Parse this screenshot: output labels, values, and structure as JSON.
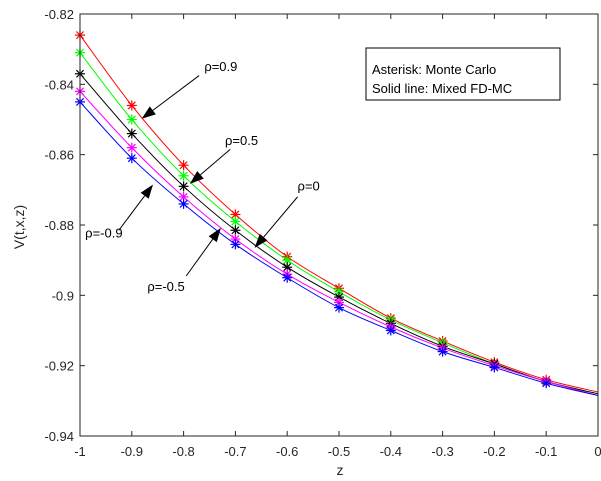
{
  "chart_data": {
    "type": "line",
    "title": "",
    "xlabel": "z",
    "ylabel": "V(t,x,z)",
    "xlim": [
      -1,
      0
    ],
    "ylim": [
      -0.94,
      -0.82
    ],
    "x_ticks": [
      -1,
      -0.9,
      -0.8,
      -0.7,
      -0.6,
      -0.5,
      -0.4,
      -0.3,
      -0.2,
      -0.1,
      0
    ],
    "y_ticks": [
      -0.94,
      -0.92,
      -0.9,
      -0.88,
      -0.86,
      -0.84,
      -0.82
    ],
    "x_tick_labels": [
      "-1",
      "-0.9",
      "-0.8",
      "-0.7",
      "-0.6",
      "-0.5",
      "-0.4",
      "-0.3",
      "-0.2",
      "-0.1",
      "0"
    ],
    "y_tick_labels": [
      "-0.94",
      "-0.92",
      "-0.9",
      "-0.88",
      "-0.86",
      "-0.84",
      "-0.82"
    ],
    "grid": false,
    "legend_text": [
      "Asterisk: Monte Carlo",
      "Solid line: Mixed FD-MC"
    ],
    "legend_position": "top-right",
    "x": [
      -1,
      -0.9,
      -0.8,
      -0.7,
      -0.6,
      -0.5,
      -0.4,
      -0.3,
      -0.2,
      -0.1,
      0
    ],
    "series": [
      {
        "color": "#ff0000",
        "values": [
          -0.826,
          -0.846,
          -0.863,
          -0.877,
          -0.889,
          -0.898,
          -0.9065,
          -0.913,
          -0.919,
          -0.924,
          -0.9275
        ]
      },
      {
        "color": "#00ff00",
        "values": [
          -0.831,
          -0.85,
          -0.866,
          -0.879,
          -0.89,
          -0.899,
          -0.907,
          -0.9135,
          -0.9195,
          -0.9245,
          -0.928
        ]
      },
      {
        "color": "#000000",
        "values": [
          -0.837,
          -0.854,
          -0.869,
          -0.8815,
          -0.892,
          -0.9005,
          -0.908,
          -0.9145,
          -0.9195,
          -0.9245,
          -0.928
        ]
      },
      {
        "color": "#ff00ff",
        "values": [
          -0.842,
          -0.858,
          -0.872,
          -0.884,
          -0.894,
          -0.902,
          -0.909,
          -0.915,
          -0.92,
          -0.9245,
          -0.9285
        ]
      },
      {
        "color": "#0000ff",
        "values": [
          -0.845,
          -0.861,
          -0.874,
          -0.8855,
          -0.895,
          -0.9035,
          -0.91,
          -0.916,
          -0.9205,
          -0.925,
          -0.9285
        ]
      }
    ],
    "annotations": [
      {
        "label": "ρ=0.9",
        "text_at": [
          -0.76,
          -0.8362
        ],
        "arrow_from": [
          -0.77,
          -0.8375
        ],
        "arrow_to": [
          -0.881,
          -0.8498
        ]
      },
      {
        "label": "ρ=0.5",
        "text_at": [
          -0.72,
          -0.8572
        ],
        "arrow_from": [
          -0.71,
          -0.8585
        ],
        "arrow_to": [
          -0.788,
          -0.8683
        ]
      },
      {
        "label": "ρ=0",
        "text_at": [
          -0.58,
          -0.8702
        ],
        "arrow_from": [
          -0.58,
          -0.872
        ],
        "arrow_to": [
          -0.663,
          -0.8865
        ]
      },
      {
        "label": "ρ=-0.9",
        "text_at": [
          -0.99,
          -0.8836
        ],
        "arrow_from": [
          -0.925,
          -0.8815
        ],
        "arrow_to": [
          -0.859,
          -0.8685
        ]
      },
      {
        "label": "ρ=-0.5",
        "text_at": [
          -0.87,
          -0.8988
        ],
        "arrow_from": [
          -0.795,
          -0.8945
        ],
        "arrow_to": [
          -0.728,
          -0.8808
        ]
      }
    ]
  }
}
